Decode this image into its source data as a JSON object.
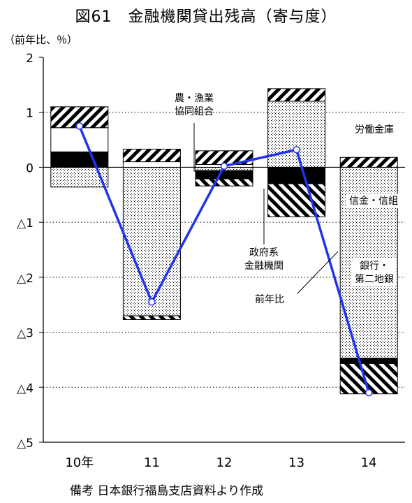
{
  "title": "図61　金融機関貸出残高（寄与度）",
  "unit_label": "（前年比、％）",
  "source_note": "備考 日本銀行福島支店資料より作成",
  "colors": {
    "line": "#2233ee",
    "axis": "#000000",
    "grid": "#000000"
  },
  "chart_data": {
    "type": "bar",
    "stacked": true,
    "title": "図61　金融機関貸出残高（寄与度）",
    "ylabel": "（前年比、％）",
    "xlabel": "",
    "ylim": [
      -5,
      2
    ],
    "yticks": [
      2,
      1,
      0,
      -1,
      -2,
      -3,
      -4,
      -5
    ],
    "ytick_labels": [
      "2",
      "1",
      "0",
      "△1",
      "△2",
      "△3",
      "△4",
      "△5"
    ],
    "grid": "horizontal dotted",
    "categories": [
      "10年",
      "11",
      "12",
      "13",
      "14"
    ],
    "series": [
      {
        "name": "銀行・第二地銀",
        "pattern": "dots",
        "values": [
          -0.36,
          -2.7,
          -0.06,
          1.2,
          -3.47
        ]
      },
      {
        "name": "政府系金融機関",
        "pattern": "solid",
        "values": [
          0.28,
          0.0,
          -0.15,
          -0.3,
          -0.1
        ]
      },
      {
        "name": "信金・信組",
        "pattern": "back-diagonal",
        "values": [
          0.0,
          -0.07,
          -0.13,
          -0.6,
          -0.55
        ]
      },
      {
        "name": "農・漁業協同組合",
        "pattern": "white",
        "values": [
          0.44,
          0.1,
          0.05,
          0.0,
          0.0
        ]
      },
      {
        "name": "労働金庫",
        "pattern": "diagonal",
        "values": [
          0.38,
          0.23,
          0.25,
          0.23,
          0.18
        ]
      },
      {
        "name": "前年比",
        "type": "line",
        "values": [
          0.75,
          -2.45,
          0.02,
          0.32,
          -4.1
        ]
      }
    ],
    "annotations": [
      {
        "text": "農・漁業\n協同組合"
      },
      {
        "text": "労働金庫"
      },
      {
        "text": "信金・信組"
      },
      {
        "text": "政府系\n金融機関"
      },
      {
        "text": "銀行・\n第二地銀"
      },
      {
        "text": "前年比"
      }
    ]
  }
}
